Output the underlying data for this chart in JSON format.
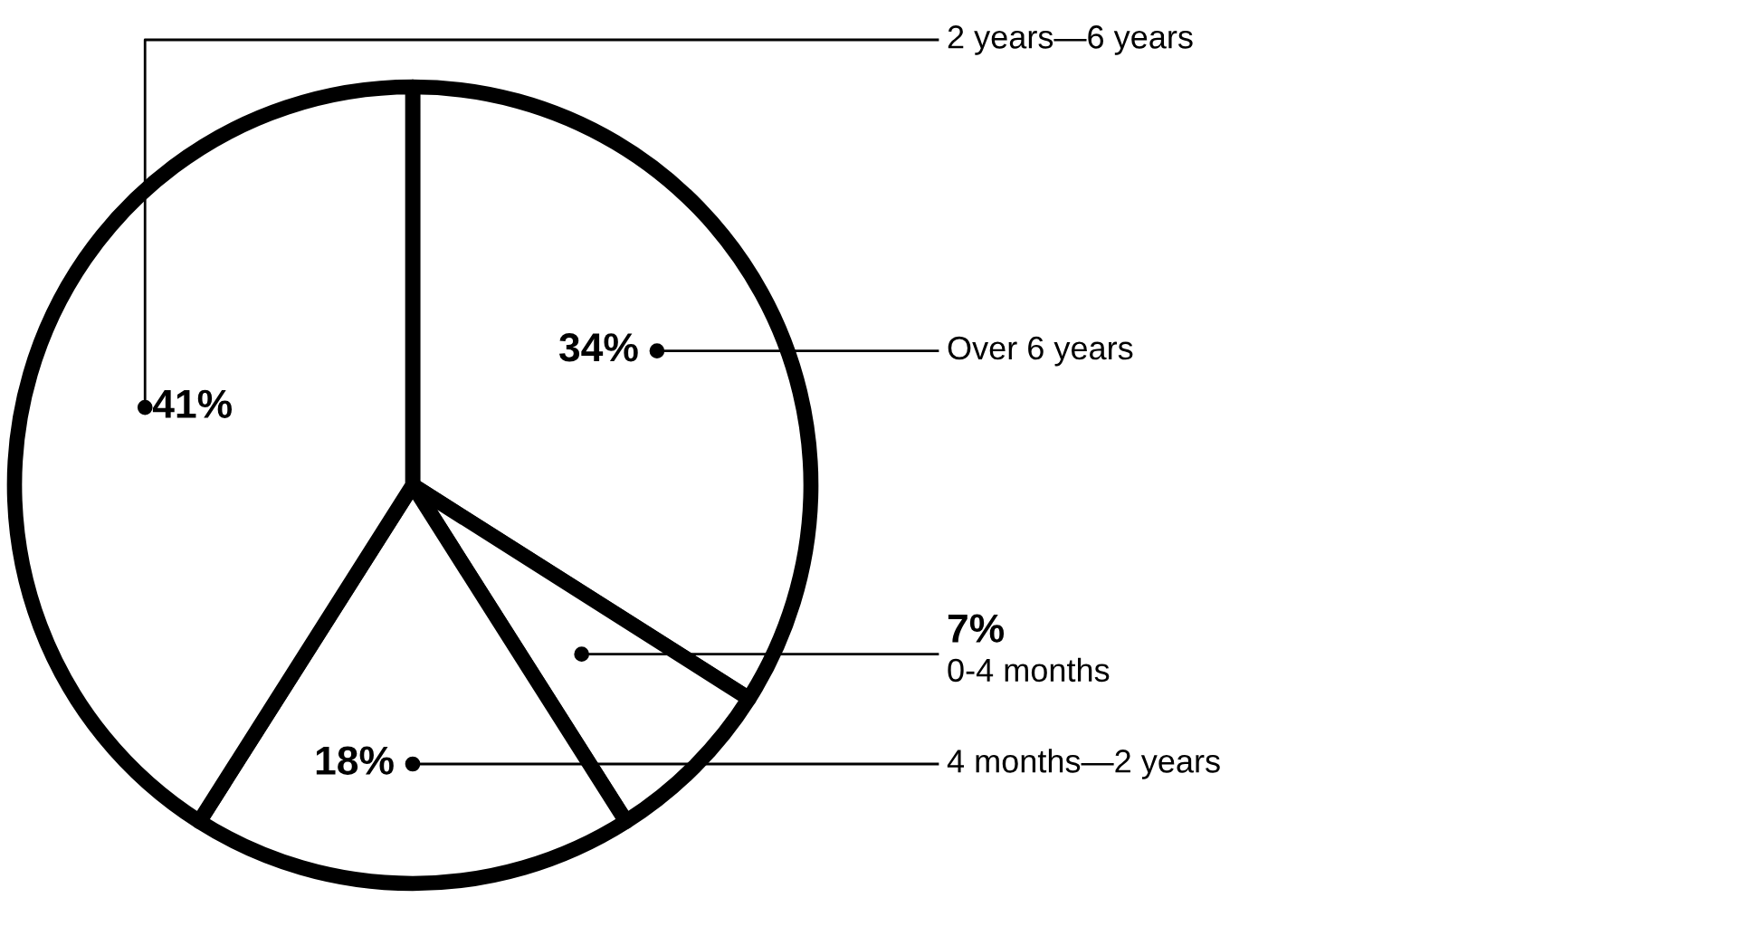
{
  "chart_data": {
    "type": "pie",
    "categories": [
      "Over 6 years",
      "0-4 months",
      "4 months—2 years",
      "2 years—6 years"
    ],
    "values": [
      34,
      7,
      18,
      41
    ],
    "colors": [
      "#ffffff",
      "#ffffff",
      "#ffffff",
      "#ffffff"
    ],
    "value_labels": [
      "34%",
      "7%",
      "18%",
      "41%"
    ]
  }
}
